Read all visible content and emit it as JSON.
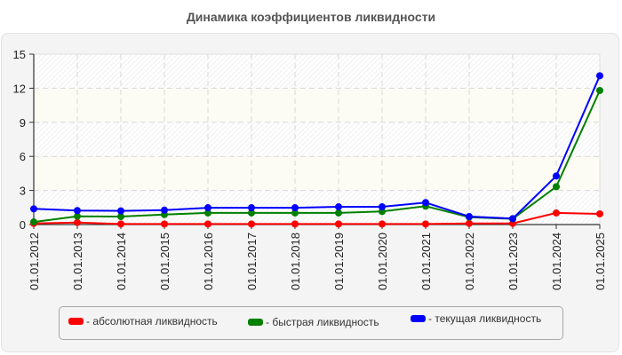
{
  "chart_data": {
    "type": "line",
    "title": "Динамика коэффициентов ликвидности",
    "xlabel": "",
    "ylabel": "",
    "ylim": [
      0,
      15
    ],
    "yticks": [
      0,
      3,
      6,
      9,
      12,
      15
    ],
    "grid": true,
    "legend_position": "bottom",
    "categories": [
      "01.01.2012",
      "01.01.2013",
      "01.01.2014",
      "01.01.2015",
      "01.01.2016",
      "01.01.2017",
      "01.01.2018",
      "01.01.2019",
      "01.01.2020",
      "01.01.2021",
      "01.01.2022",
      "01.01.2023",
      "01.01.2024",
      "01.01.2025"
    ],
    "series": [
      {
        "name": "абсолютная ликвидность",
        "color": "#ff0000",
        "values": [
          0.1,
          0.18,
          0.05,
          0.05,
          0.05,
          0.05,
          0.05,
          0.05,
          0.05,
          0.05,
          0.1,
          0.1,
          1.02,
          0.94
        ]
      },
      {
        "name": "быстрая ликвидность",
        "color": "#008000",
        "values": [
          0.23,
          0.73,
          0.7,
          0.88,
          1.02,
          1.02,
          1.02,
          1.02,
          1.15,
          1.62,
          0.65,
          0.5,
          3.33,
          11.8
        ]
      },
      {
        "name": "текущая ликвидность",
        "color": "#0000ff",
        "values": [
          1.38,
          1.23,
          1.2,
          1.27,
          1.48,
          1.48,
          1.48,
          1.56,
          1.56,
          1.93,
          0.7,
          0.52,
          4.27,
          13.1
        ]
      }
    ]
  },
  "title": "Динамика коэффициентов ликвидности",
  "legend": {
    "items": [
      {
        "label": "- абсолютная ликвидность",
        "color": "#ff0000"
      },
      {
        "label": "- быстрая ликвидность",
        "color": "#008000"
      },
      {
        "label": "- текущая ликвидность",
        "color": "#0000ff"
      }
    ]
  }
}
